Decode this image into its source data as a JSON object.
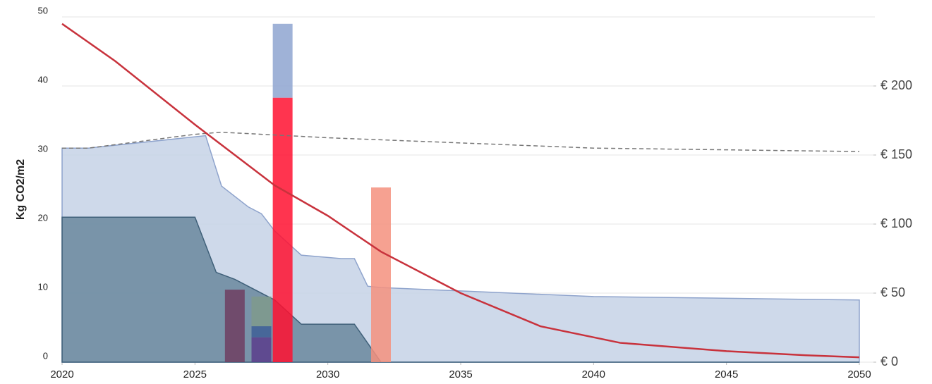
{
  "chart_data": {
    "type": "area",
    "y_label": "Kg CO2/m2",
    "xlim": [
      2020,
      2050
    ],
    "xticks": [
      2020,
      2025,
      2030,
      2035,
      2040,
      2045,
      2050
    ],
    "ylim": [
      0,
      50
    ],
    "yticks": [
      0,
      10,
      20,
      30,
      40,
      50
    ],
    "y2lim": [
      0,
      250
    ],
    "y2ticks": [
      {
        "value": 0,
        "label": "€ 0"
      },
      {
        "value": 50,
        "label": "€ 50"
      },
      {
        "value": 100,
        "label": "€ 100"
      },
      {
        "value": 150,
        "label": "€ 150"
      },
      {
        "value": 200,
        "label": "€ 200"
      }
    ],
    "grid": true,
    "series": [
      {
        "type": "area",
        "color": "#c6d2e6",
        "line_color": "#8ea3cc",
        "x": [
          2020,
          2021,
          2025.4,
          2026,
          2027,
          2027.5,
          2028,
          2029,
          2030.5,
          2031,
          2031.5,
          2032,
          2040,
          2050
        ],
        "values": [
          31,
          31,
          32.8,
          25.5,
          22.5,
          21.5,
          19,
          15.5,
          15,
          15,
          11,
          10.8,
          9.5,
          9
        ]
      },
      {
        "type": "area",
        "color": "#6a879d",
        "line_color": "#3f6079",
        "x": [
          2020,
          2025,
          2025.8,
          2026.5,
          2028,
          2029,
          2031,
          2032,
          2050
        ],
        "values": [
          21,
          21,
          13,
          12,
          9,
          5.5,
          5.5,
          0,
          0
        ]
      },
      {
        "type": "bar",
        "x": 2026.5,
        "segments": [
          {
            "color": "#6e3e62",
            "value": 10.5
          }
        ]
      },
      {
        "type": "bar",
        "x": 2027.5,
        "segments": [
          {
            "color": "#5a3d8c",
            "value": 3.6
          },
          {
            "color": "#3e5f96",
            "value": 1.6
          },
          {
            "color": "#7f9a8c",
            "value": 4.3
          }
        ]
      },
      {
        "type": "bar",
        "x": 2028.3,
        "segments": [
          {
            "color": "#ff1030",
            "value": 38.3
          },
          {
            "color": "#8ea5d0",
            "value": 10.7
          }
        ]
      },
      {
        "type": "bar",
        "x": 2032,
        "segments": [
          {
            "color": "#f4907e",
            "value": 25.3
          }
        ]
      },
      {
        "type": "line",
        "dashed": true,
        "color": "#777777",
        "x": [
          2020,
          2021,
          2025,
          2026,
          2030,
          2040,
          2050
        ],
        "values": [
          31,
          31,
          33,
          33.3,
          32.5,
          31,
          30.5
        ]
      },
      {
        "type": "line",
        "axis": "y2",
        "color": "#c8323c",
        "x": [
          2020,
          2022,
          2025,
          2028,
          2030,
          2032,
          2035,
          2038,
          2041,
          2045,
          2048,
          2050
        ],
        "values": [
          245,
          218,
          172,
          128,
          106,
          80,
          50,
          26,
          14,
          8,
          5,
          3.5
        ]
      }
    ]
  }
}
